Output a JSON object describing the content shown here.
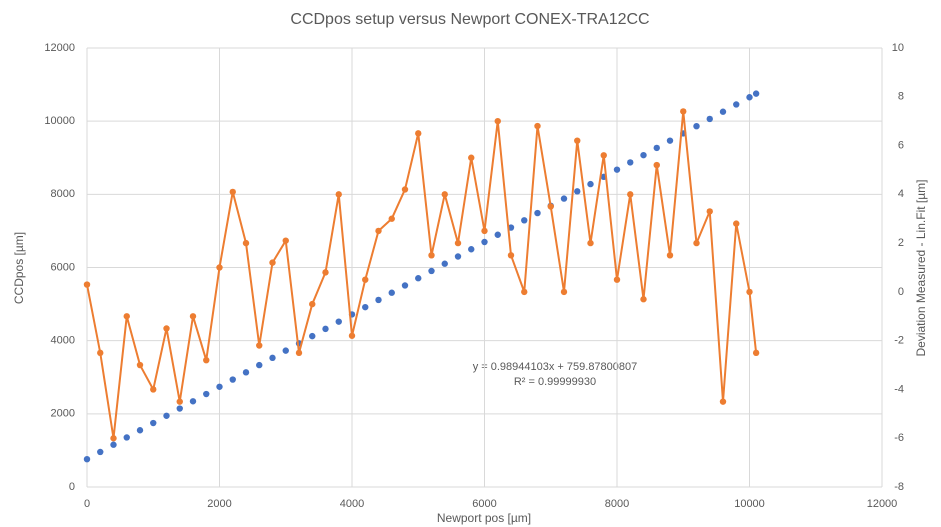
{
  "chart_data": {
    "type": "scatter",
    "title": "CCDpos setup versus Newport CONEX-TRA12CC",
    "x_label": "Newport pos [µm]",
    "y_label": "CCDpos [µm]",
    "y2_label": "Deviation Measured - Lin.Fit [µm]",
    "annotations": [
      "y = 0.98944103x + 759.87800807",
      "R² = 0.99999930"
    ],
    "x": [
      0,
      200,
      400,
      600,
      800,
      1000,
      1200,
      1400,
      1600,
      1800,
      2000,
      2200,
      2400,
      2600,
      2800,
      3000,
      3200,
      3400,
      3600,
      3800,
      4000,
      4200,
      4400,
      4600,
      4800,
      5000,
      5200,
      5400,
      5600,
      5800,
      6000,
      6200,
      6400,
      6600,
      6800,
      7000,
      7200,
      7400,
      7600,
      7800,
      8000,
      8200,
      8400,
      8600,
      8800,
      9000,
      9200,
      9400,
      9600,
      9800,
      10000,
      10100
    ],
    "series": [
      {
        "name": "CCDpos",
        "color": "#4472c4",
        "line": false,
        "values": [
          760,
          958,
          1156,
          1354,
          1551,
          1749,
          1947,
          2145,
          2343,
          2541,
          2739,
          2937,
          3134,
          3332,
          3530,
          3728,
          3926,
          4124,
          4322,
          4520,
          4718,
          4916,
          5113,
          5311,
          5509,
          5707,
          5905,
          6103,
          6301,
          6499,
          6697,
          6895,
          7092,
          7290,
          7488,
          7686,
          7884,
          8082,
          8280,
          8478,
          8675,
          8873,
          9071,
          9269,
          9467,
          9665,
          9863,
          10061,
          10258,
          10456,
          10654,
          10753
        ]
      },
      {
        "name": "Deviation",
        "color": "#ed7d31",
        "line": true,
        "axis": "y2",
        "values": [
          0.3,
          -2.5,
          -6.0,
          -1.0,
          -3.0,
          -4.0,
          -1.5,
          -4.5,
          -1.0,
          -2.8,
          1.0,
          4.1,
          2.0,
          -2.2,
          1.2,
          2.1,
          -2.5,
          -0.5,
          0.8,
          4.0,
          -1.8,
          0.5,
          2.5,
          3.0,
          4.2,
          6.5,
          1.5,
          4.0,
          2.0,
          5.5,
          2.5,
          7.0,
          1.5,
          0.0,
          6.8,
          3.5,
          0.0,
          6.2,
          2.0,
          5.6,
          0.5,
          4.0,
          -0.3,
          5.2,
          1.5,
          7.4,
          2.0,
          3.3,
          -4.5,
          2.8,
          0.0,
          -2.5
        ]
      }
    ],
    "xlim": [
      0,
      12000
    ],
    "xticks": [
      0,
      2000,
      4000,
      6000,
      8000,
      10000,
      12000
    ],
    "ylim": [
      0,
      12000
    ],
    "yticks": [
      0,
      2000,
      4000,
      6000,
      8000,
      10000,
      12000
    ],
    "y2lim": [
      -8,
      10
    ],
    "y2ticks": [
      -8,
      -6,
      -4,
      -2,
      0,
      2,
      4,
      6,
      8,
      10
    ],
    "grid": true
  }
}
